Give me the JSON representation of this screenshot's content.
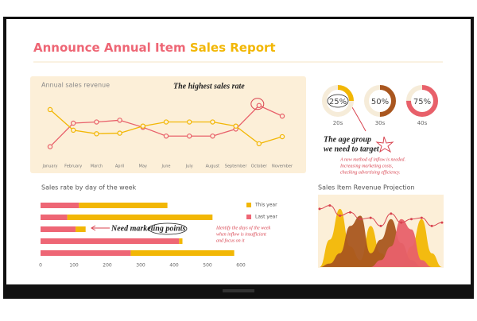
{
  "header": {
    "title": "Announce Annual Item",
    "title_highlight": "Sales Report"
  },
  "chart_data": [
    {
      "type": "line",
      "title": "Annual sales revenue",
      "categories": [
        "January",
        "February",
        "March",
        "April",
        "May",
        "June",
        "July",
        "August",
        "September",
        "October",
        "November"
      ],
      "series": [
        {
          "color": "#e8606a",
          "values": [
            10,
            50,
            52,
            55,
            43,
            28,
            28,
            28,
            40,
            80,
            62
          ]
        },
        {
          "color": "#f2b705",
          "values": [
            73,
            38,
            32,
            33,
            45,
            52,
            52,
            52,
            45,
            15,
            27
          ]
        }
      ],
      "ylim": [
        0,
        100
      ],
      "annotations": [
        "The highest sales rate"
      ]
    },
    {
      "type": "donut",
      "categories": [
        "20s",
        "30s",
        "40s"
      ],
      "values": [
        25,
        50,
        75
      ],
      "value_labels": [
        "25%",
        "50%",
        "75%"
      ],
      "colors": [
        "#f2b705",
        "#a9561f",
        "#e8606a"
      ],
      "annotations": [
        "The age group",
        "we need to target",
        "A new method of inflow is needed.",
        "Increasing marketing costs,",
        "checking advertising efficiency."
      ]
    },
    {
      "type": "hbar-stacked",
      "title": "Sales rate by day of the week",
      "series": [
        {
          "name": "Last year",
          "color": "#ee6675",
          "values": [
            115,
            80,
            105,
            415,
            270
          ]
        },
        {
          "name": "This year",
          "color": "#f2b705",
          "values": [
            265,
            435,
            30,
            10,
            310
          ]
        }
      ],
      "xlim": [
        0,
        600
      ],
      "xticks": [
        0,
        100,
        200,
        300,
        400,
        500,
        600
      ],
      "annotations": [
        "Need marketing points",
        "Identify the days of the week",
        "when inflow is insufficient",
        "and focus on it"
      ]
    },
    {
      "type": "area",
      "title": "Sales Item Revenue Projection",
      "categories": [
        null,
        null,
        null,
        null,
        null,
        null,
        null,
        null,
        null,
        null,
        null,
        null,
        null
      ],
      "series": [
        {
          "color": "#f2b705",
          "values": [
            0,
            40,
            85,
            30,
            10,
            60,
            20,
            5,
            0,
            30,
            70,
            20,
            0
          ]
        },
        {
          "color": "#a9561f",
          "values": [
            0,
            5,
            20,
            60,
            75,
            20,
            40,
            70,
            35,
            10,
            0,
            0,
            0
          ]
        },
        {
          "color": "#e8606a",
          "values": [
            0,
            0,
            0,
            0,
            0,
            0,
            10,
            30,
            70,
            55,
            10,
            0,
            0
          ]
        },
        {
          "color": "#d8434f",
          "kind": "line",
          "values": [
            85,
            90,
            75,
            80,
            70,
            72,
            60,
            78,
            65,
            70,
            72,
            60,
            65
          ]
        }
      ],
      "ylim": [
        0,
        100
      ]
    }
  ]
}
